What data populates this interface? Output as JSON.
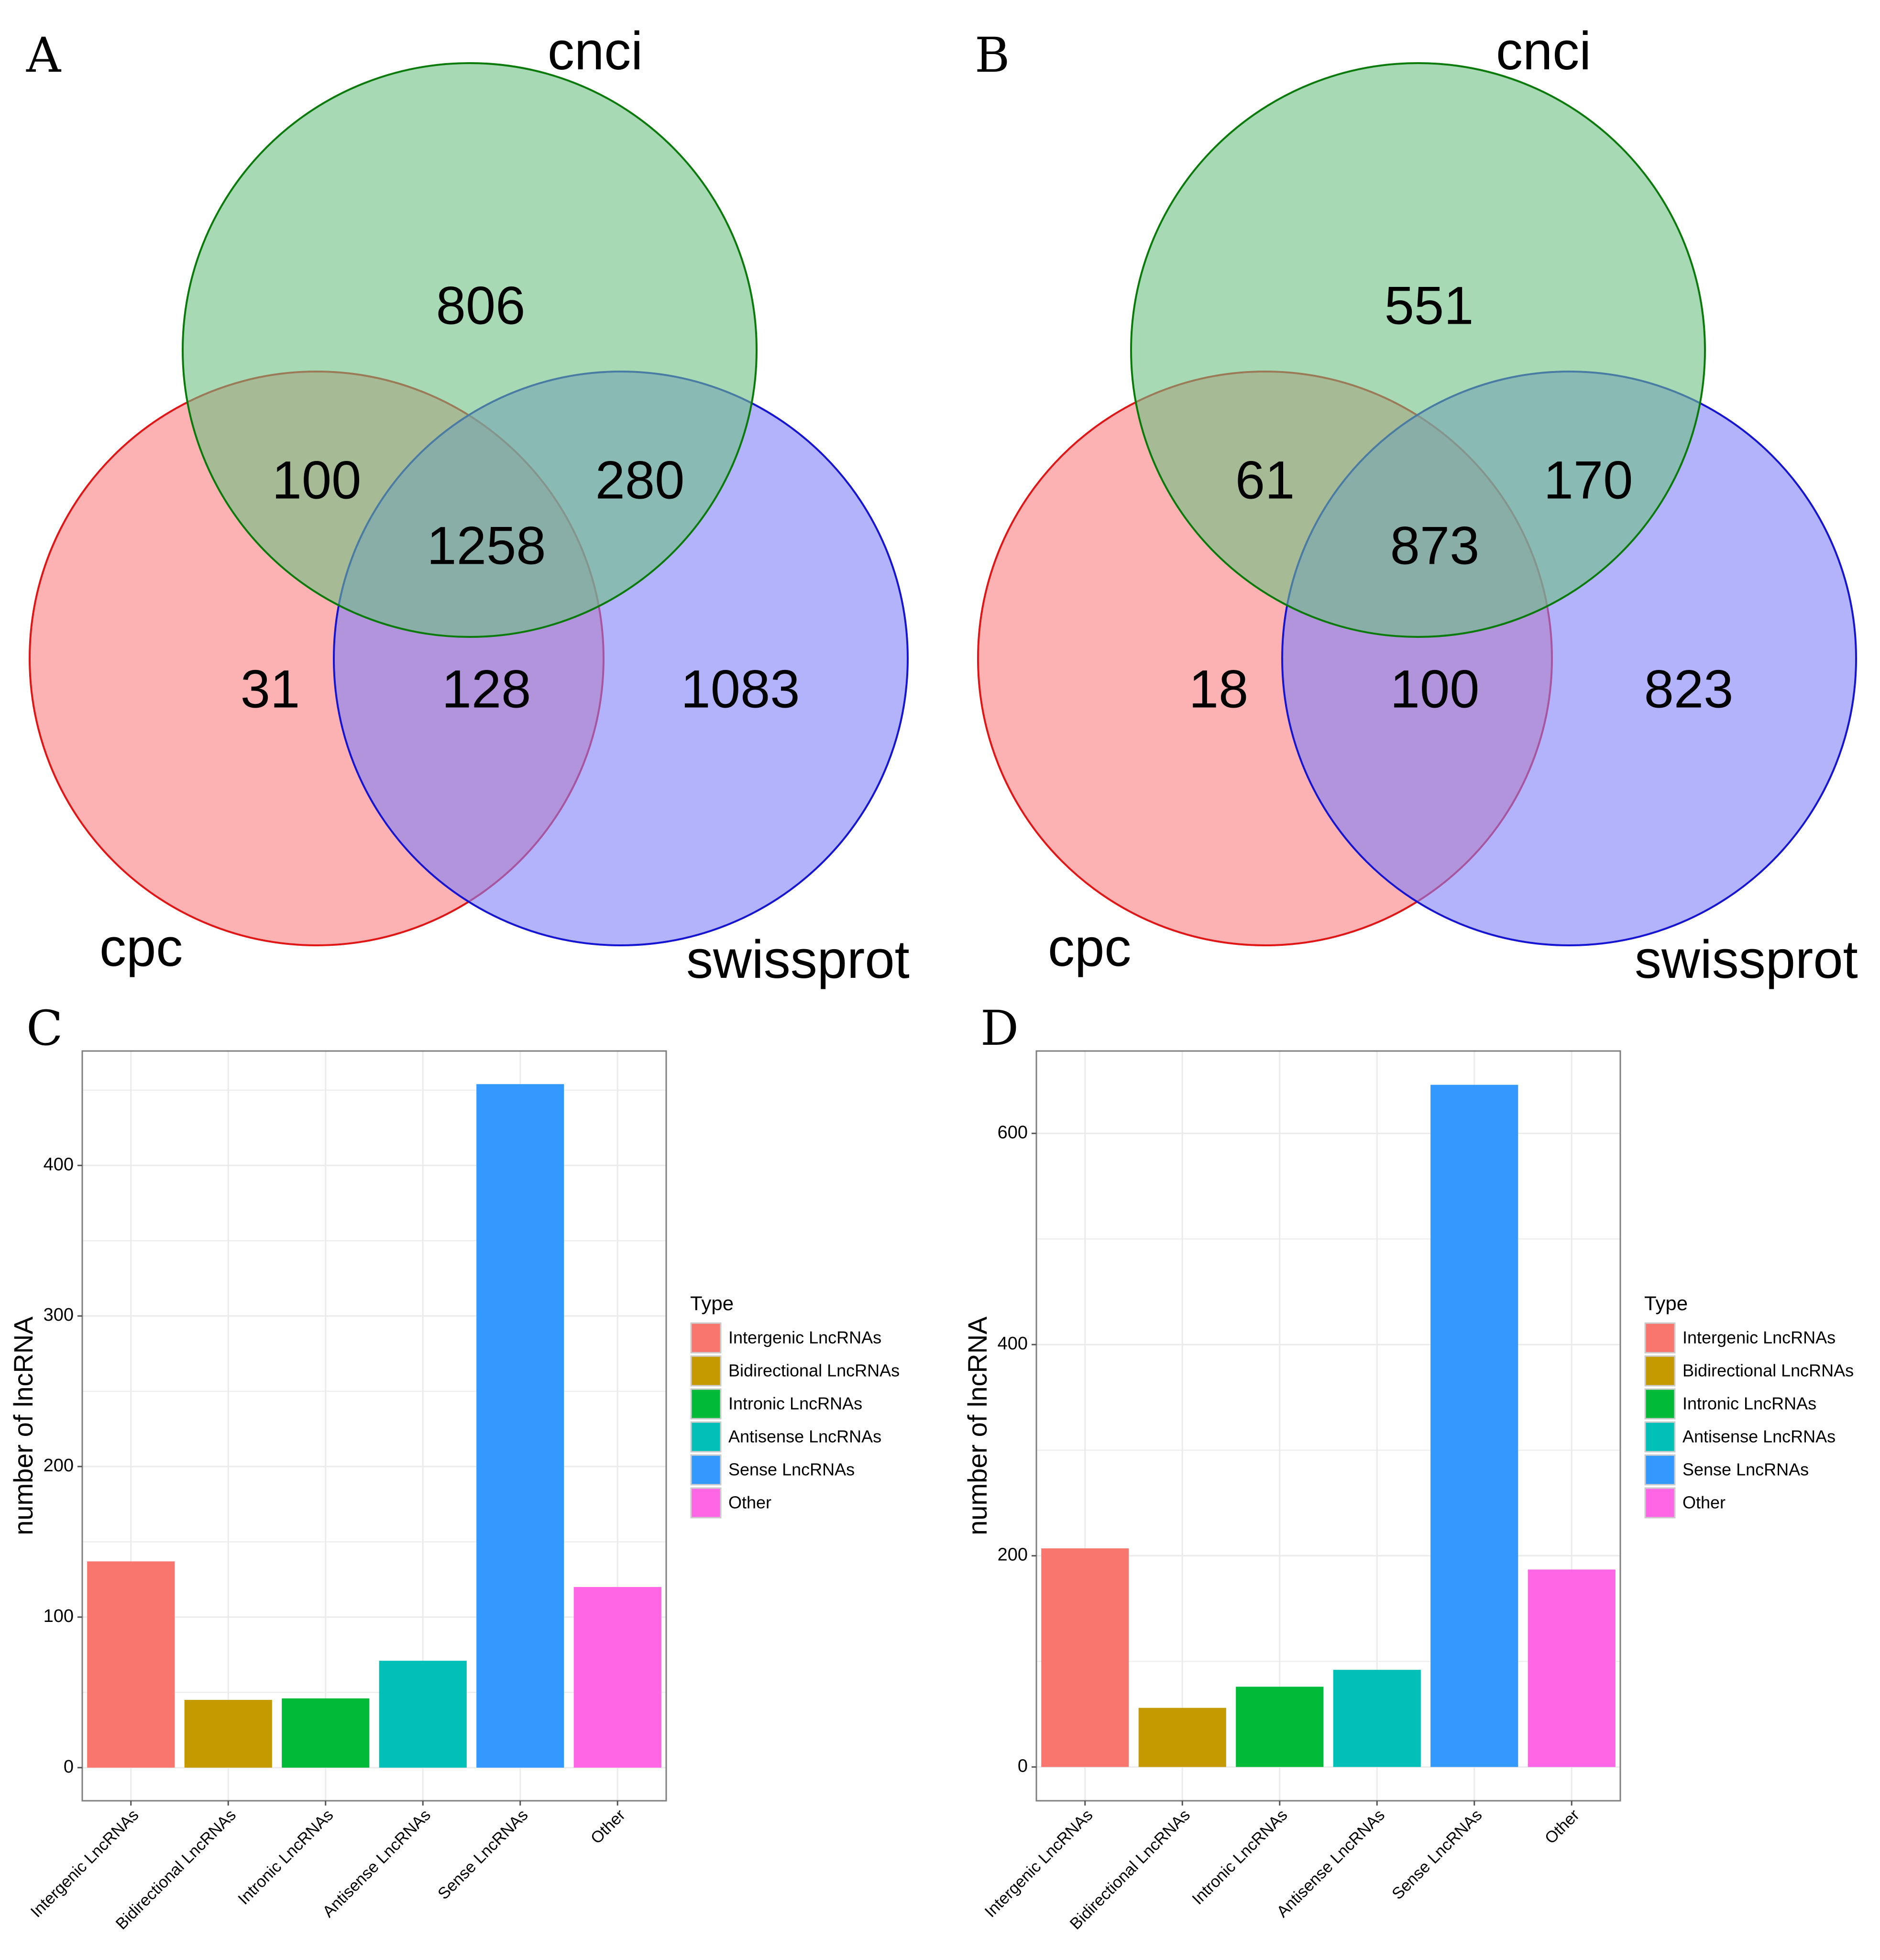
{
  "panels": {
    "A": "A",
    "B": "B",
    "C": "C",
    "D": "D"
  },
  "colors": {
    "cnci_fill": "#6cc083",
    "cnci_stroke": "#0a7a0a",
    "cpc_fill": "#fa7f7f",
    "cpc_stroke": "#e01616",
    "swissprot_fill": "#8080fa",
    "swissprot_stroke": "#1414d2",
    "grid": "#ebebeb",
    "frame": "#7f7f7f"
  },
  "chart_data": [
    {
      "panel": "A",
      "type": "venn",
      "sets": [
        "cnci",
        "cpc",
        "swissprot"
      ],
      "regions": {
        "cnci_only": 806,
        "cnci_cpc": 100,
        "cnci_swissprot": 280,
        "all": 1258,
        "cpc_only": 31,
        "cpc_swissprot": 128,
        "swissprot_only": 1083
      }
    },
    {
      "panel": "B",
      "type": "venn",
      "sets": [
        "cnci",
        "cpc",
        "swissprot"
      ],
      "regions": {
        "cnci_only": 551,
        "cnci_cpc": 61,
        "cnci_swissprot": 170,
        "all": 873,
        "cpc_only": 18,
        "cpc_swissprot": 100,
        "swissprot_only": 823
      }
    },
    {
      "panel": "C",
      "type": "bar",
      "categories": [
        "Intergenic LncRNAs",
        "Bidirectional LncRNAs",
        "Intronic LncRNAs",
        "Antisense LncRNAs",
        "Sense LncRNAs",
        "Other"
      ],
      "values": [
        137,
        45,
        46,
        71,
        454,
        120
      ],
      "colors": [
        "#f8766d",
        "#c49a00",
        "#00ba38",
        "#00c0b8",
        "#3399ff",
        "#ff66e6"
      ],
      "ylabel": "number of lncRNA",
      "ylim": [
        -22,
        476
      ],
      "yticks": [
        0,
        100,
        200,
        300,
        400
      ],
      "legend_title": "Type",
      "legend_position": "right"
    },
    {
      "panel": "D",
      "type": "bar",
      "categories": [
        "Intergenic LncRNAs",
        "Bidirectional LncRNAs",
        "Intronic LncRNAs",
        "Antisense LncRNAs",
        "Sense LncRNAs",
        "Other"
      ],
      "values": [
        207,
        56,
        76,
        92,
        646,
        187
      ],
      "colors": [
        "#f8766d",
        "#c49a00",
        "#00ba38",
        "#00c0b8",
        "#3399ff",
        "#ff66e6"
      ],
      "ylabel": "number of lncRNA",
      "ylim": [
        -32,
        678
      ],
      "yticks": [
        0,
        200,
        400,
        600
      ],
      "legend_title": "Type",
      "legend_position": "right"
    }
  ]
}
